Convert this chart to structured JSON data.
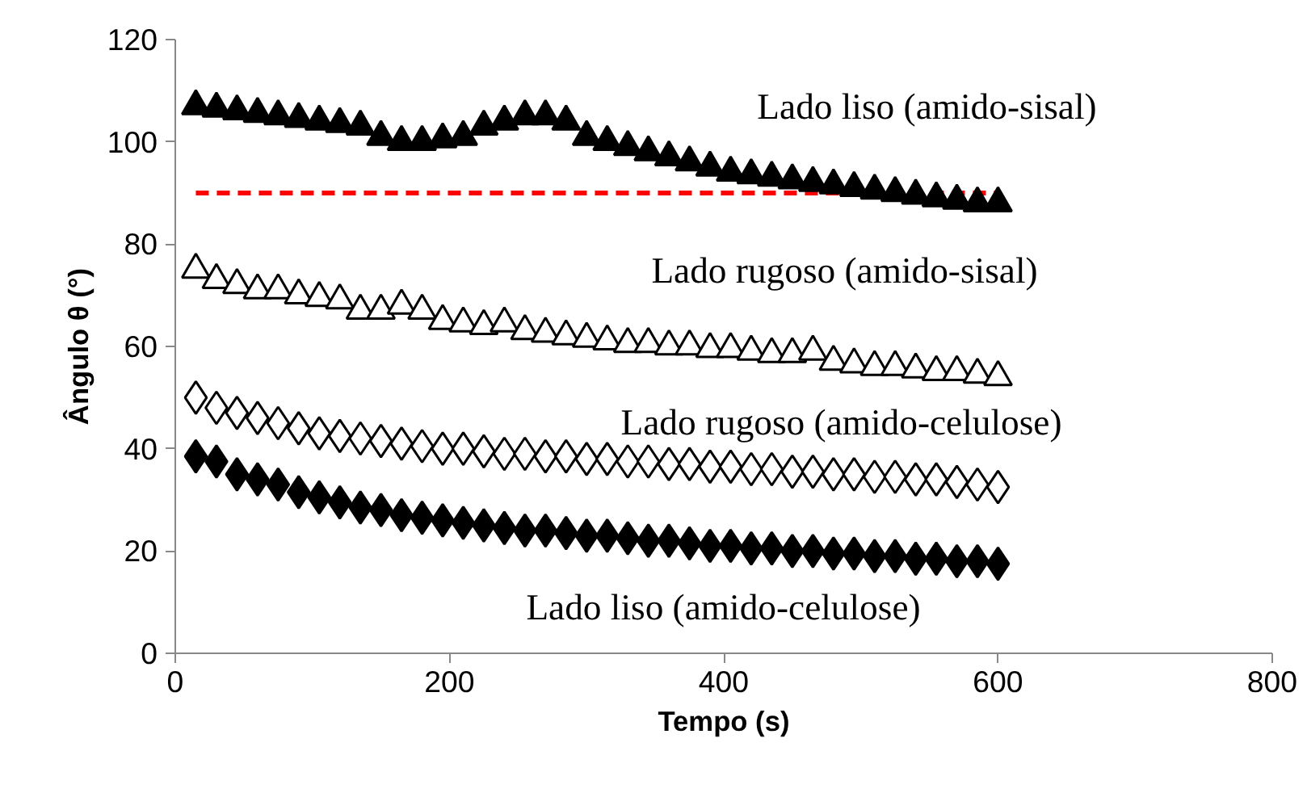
{
  "chart_data": {
    "type": "scatter",
    "xlabel": "Tempo (s)",
    "ylabel": "Ângulo θ (°)",
    "x": [
      15,
      30,
      45,
      60,
      75,
      90,
      105,
      120,
      135,
      150,
      165,
      180,
      195,
      210,
      225,
      240,
      255,
      270,
      285,
      300,
      315,
      330,
      345,
      360,
      375,
      390,
      405,
      420,
      435,
      450,
      465,
      480,
      495,
      510,
      525,
      540,
      555,
      570,
      585,
      600
    ],
    "series": [
      {
        "name": "Lado liso (amido-sisal)",
        "color": "#000000",
        "marker": "triangle",
        "values": [
          107,
          106.5,
          106,
          105.5,
          105,
          104.5,
          104,
          103.5,
          103,
          101,
          100,
          100,
          100.5,
          101,
          103,
          104,
          105,
          105,
          104,
          101,
          100,
          99,
          98,
          97,
          96,
          95,
          94,
          93.5,
          93,
          92.5,
          92,
          91.5,
          91,
          90.5,
          90,
          89.5,
          89,
          88.5,
          88,
          88
        ]
      },
      {
        "name": "Lado rugoso (amido-sisal)",
        "color": "#000000",
        "marker": "triangle",
        "values": [
          75,
          73,
          72,
          71,
          71,
          70,
          69.5,
          69,
          67,
          67,
          68,
          67,
          65,
          64.5,
          64,
          64.5,
          63,
          62.5,
          62,
          61.5,
          61,
          60.5,
          60.5,
          60,
          60,
          59.5,
          59.5,
          59,
          58.5,
          58.5,
          59,
          57,
          56.5,
          56,
          56,
          55.5,
          55,
          55,
          54.5,
          54
        ]
      },
      {
        "name": "Lado rugoso (amido-celulose)",
        "color": "#000000",
        "marker": "diamond",
        "values": [
          50,
          48,
          47,
          46,
          45,
          44,
          43,
          42.5,
          42,
          41.5,
          41,
          40.5,
          40,
          40,
          39.5,
          39,
          39,
          38.5,
          38.5,
          38,
          38,
          37.5,
          37.5,
          37,
          37,
          36.5,
          36.5,
          36,
          36,
          35.5,
          35.5,
          35,
          35,
          34.5,
          34.5,
          34,
          34,
          33.5,
          33,
          32.5
        ]
      },
      {
        "name": "Lado liso (amido-celulose)",
        "color": "#000000",
        "marker": "diamond",
        "values": [
          38.5,
          37.5,
          35,
          34,
          33,
          31.5,
          30.5,
          29.5,
          28.5,
          28,
          27,
          26.5,
          26,
          25.5,
          25,
          24.5,
          24,
          24,
          23.5,
          23,
          23,
          22.5,
          22,
          22,
          21.5,
          21,
          21,
          20.5,
          20.5,
          20,
          20,
          19.5,
          19.5,
          19,
          19,
          18.5,
          18.5,
          18,
          18,
          17.5
        ]
      }
    ],
    "ref_lines": [
      {
        "axis": "y",
        "value": 90,
        "color": "#ff0000",
        "line_style": "dashed"
      }
    ],
    "xlim": [
      0,
      800
    ],
    "xticks": [
      0,
      200,
      400,
      600,
      800
    ],
    "ylim": [
      0,
      120
    ],
    "yticks": [
      0,
      20,
      40,
      60,
      80,
      100,
      120
    ],
    "grid": false
  }
}
